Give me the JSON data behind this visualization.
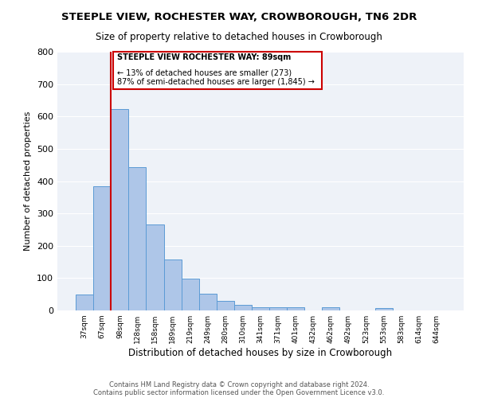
{
  "title": "STEEPLE VIEW, ROCHESTER WAY, CROWBOROUGH, TN6 2DR",
  "subtitle": "Size of property relative to detached houses in Crowborough",
  "xlabel": "Distribution of detached houses by size in Crowborough",
  "ylabel": "Number of detached properties",
  "bins": [
    "37sqm",
    "67sqm",
    "98sqm",
    "128sqm",
    "158sqm",
    "189sqm",
    "219sqm",
    "249sqm",
    "280sqm",
    "310sqm",
    "341sqm",
    "371sqm",
    "401sqm",
    "432sqm",
    "462sqm",
    "492sqm",
    "523sqm",
    "553sqm",
    "583sqm",
    "614sqm",
    "644sqm"
  ],
  "bar_values": [
    50,
    385,
    622,
    443,
    267,
    157,
    98,
    52,
    30,
    17,
    10,
    10,
    10,
    0,
    10,
    0,
    0,
    7,
    0,
    0,
    0
  ],
  "bar_color": "#aec6e8",
  "bar_edge_color": "#5b9bd5",
  "ylim": [
    0,
    800
  ],
  "yticks": [
    0,
    100,
    200,
    300,
    400,
    500,
    600,
    700,
    800
  ],
  "property_line_color": "#cc0000",
  "annotation_title": "STEEPLE VIEW ROCHESTER WAY: 89sqm",
  "annotation_line1": "← 13% of detached houses are smaller (273)",
  "annotation_line2": "87% of semi-detached houses are larger (1,845) →",
  "annotation_box_color": "#cc0000",
  "footer1": "Contains HM Land Registry data © Crown copyright and database right 2024.",
  "footer2": "Contains public sector information licensed under the Open Government Licence v3.0.",
  "bg_color": "#eef2f8",
  "figsize": [
    6.0,
    5.0
  ],
  "dpi": 100
}
